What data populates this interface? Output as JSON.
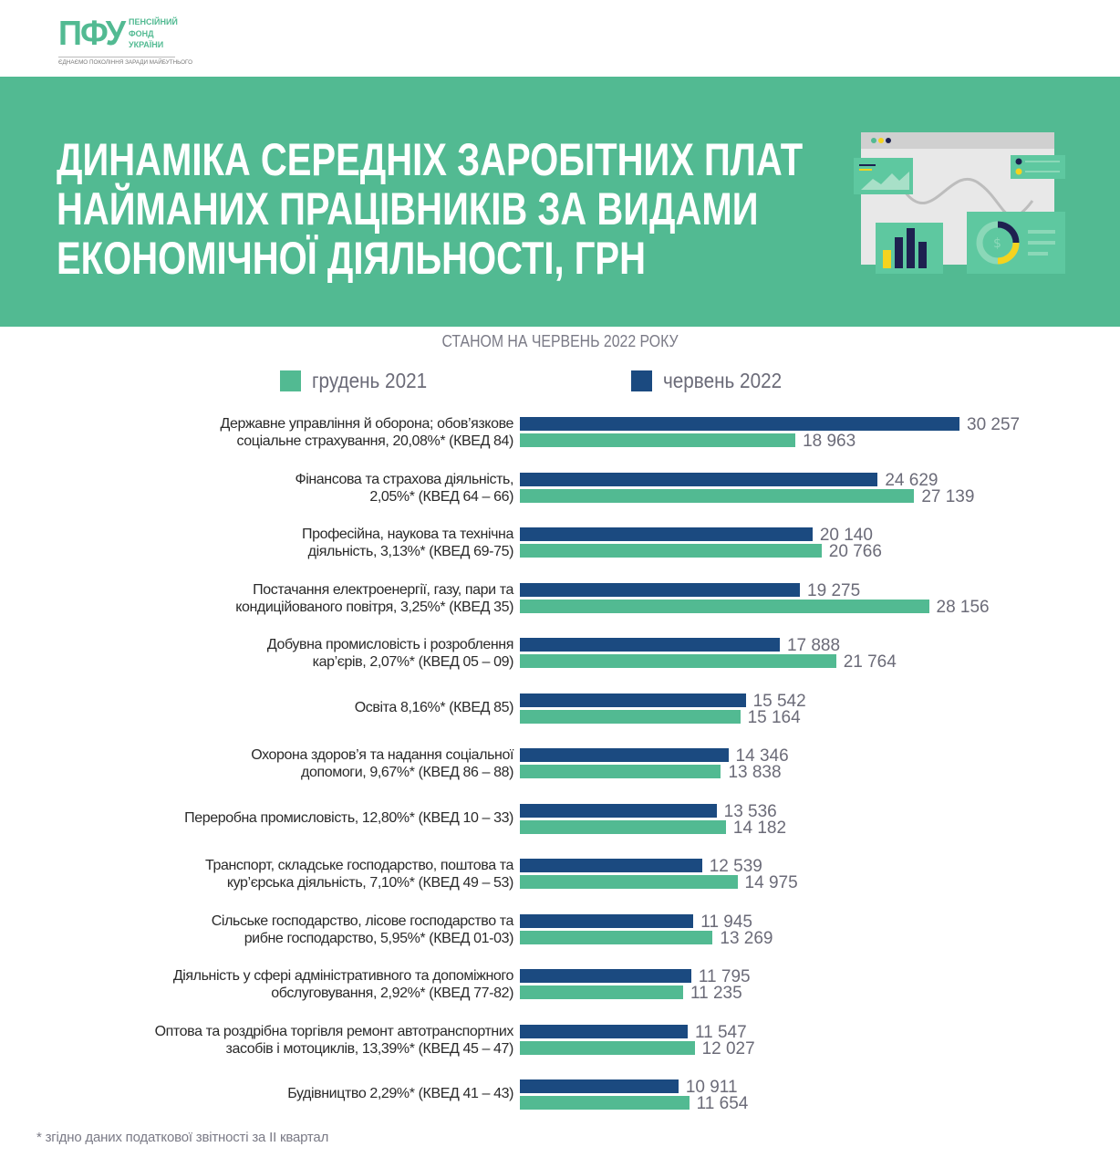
{
  "logo": {
    "mark": "ПФУ",
    "name": "ПЕНСІЙНИЙ\nФОНД\nУКРАЇНИ",
    "tagline": "ЄДНАЄМО ПОКОЛІННЯ ЗАРАДИ МАЙБУТНЬОГО"
  },
  "header": {
    "title_lines": [
      "ДИНАМІКА СЕРЕДНІХ ЗАРОБІТНИХ ПЛАТ",
      "НАЙМАНИХ ПРАЦІВНИКІВ ЗА ВИДАМИ",
      "ЕКОНОМІЧНОЇ ДІЯЛЬНОСТІ, ГРН"
    ]
  },
  "colors": {
    "green": "#52ba92",
    "blue": "#1b4a80",
    "text_grey": "#6b6b78"
  },
  "footnote": "* згідно даних податкової звітності за II квартал",
  "chart_data": {
    "type": "bar",
    "orientation": "horizontal",
    "title": "СТАНОМ НА ЧЕРВЕНЬ 2022 РОКУ",
    "legend_position": "top",
    "xlim": [
      0,
      30257
    ],
    "categories": [
      [
        "Державне управління й оборона; обов’язкове",
        "соціальне страхування, 20,08%* (КВЕД 84)"
      ],
      [
        "Фінансова та страхова діяльність,",
        "2,05%* (КВЕД 64 – 66)"
      ],
      [
        "Професійна, наукова та технічна",
        "діяльність, 3,13%* (КВЕД 69-75)"
      ],
      [
        "Постачання електроенергії, газу, пари та",
        "кондиційованого повітря, 3,25%* (КВЕД 35)"
      ],
      [
        "Добувна промисловість і розроблення",
        "кар’єрів, 2,07%* (КВЕД 05 – 09)"
      ],
      [
        "Освіта 8,16%* (КВЕД 85)"
      ],
      [
        "Охорона здоров’я та надання соціальної",
        "допомоги, 9,67%* (КВЕД 86 – 88)"
      ],
      [
        "Переробна промисловість, 12,80%* (КВЕД 10 – 33)"
      ],
      [
        "Транспорт, складське господарство, поштова та",
        "кур’єрська діяльність, 7,10%* (КВЕД 49 – 53)"
      ],
      [
        "Сільське господарство, лісове господарство та",
        "рибне господарство, 5,95%* (КВЕД 01-03)"
      ],
      [
        "Діяльність у сфері адміністративного та допоміжного",
        "обслуговування, 2,92%* (КВЕД 77-82)"
      ],
      [
        "Оптова та роздрібна торгівля ремонт автотранспортних",
        "засобів і мотоциклів, 13,39%* (КВЕД 45 – 47)"
      ],
      [
        "Будівництво 2,29%* (КВЕД 41 – 43)"
      ]
    ],
    "series": [
      {
        "name": "червень 2022",
        "color": "#1b4a80",
        "values": [
          30257,
          24629,
          20140,
          19275,
          17888,
          15542,
          14346,
          13536,
          12539,
          11945,
          11795,
          11547,
          10911
        ],
        "labels": [
          "30 257",
          "24 629",
          "20 140",
          "19 275",
          "17 888",
          "15 542",
          "14 346",
          "13 536",
          "12 539",
          "11 945",
          "11 795",
          "11 547",
          "10 911"
        ]
      },
      {
        "name": "грудень 2021",
        "color": "#52ba92",
        "values": [
          18963,
          27139,
          20766,
          28156,
          21764,
          15164,
          13838,
          14182,
          14975,
          13269,
          11235,
          12027,
          11654
        ],
        "labels": [
          "18 963",
          "27 139",
          "20 766",
          "28 156",
          "21 764",
          "15 164",
          "13 838",
          "14 182",
          "14 975",
          "13 269",
          "11 235",
          "12 027",
          "11 654"
        ]
      }
    ]
  }
}
